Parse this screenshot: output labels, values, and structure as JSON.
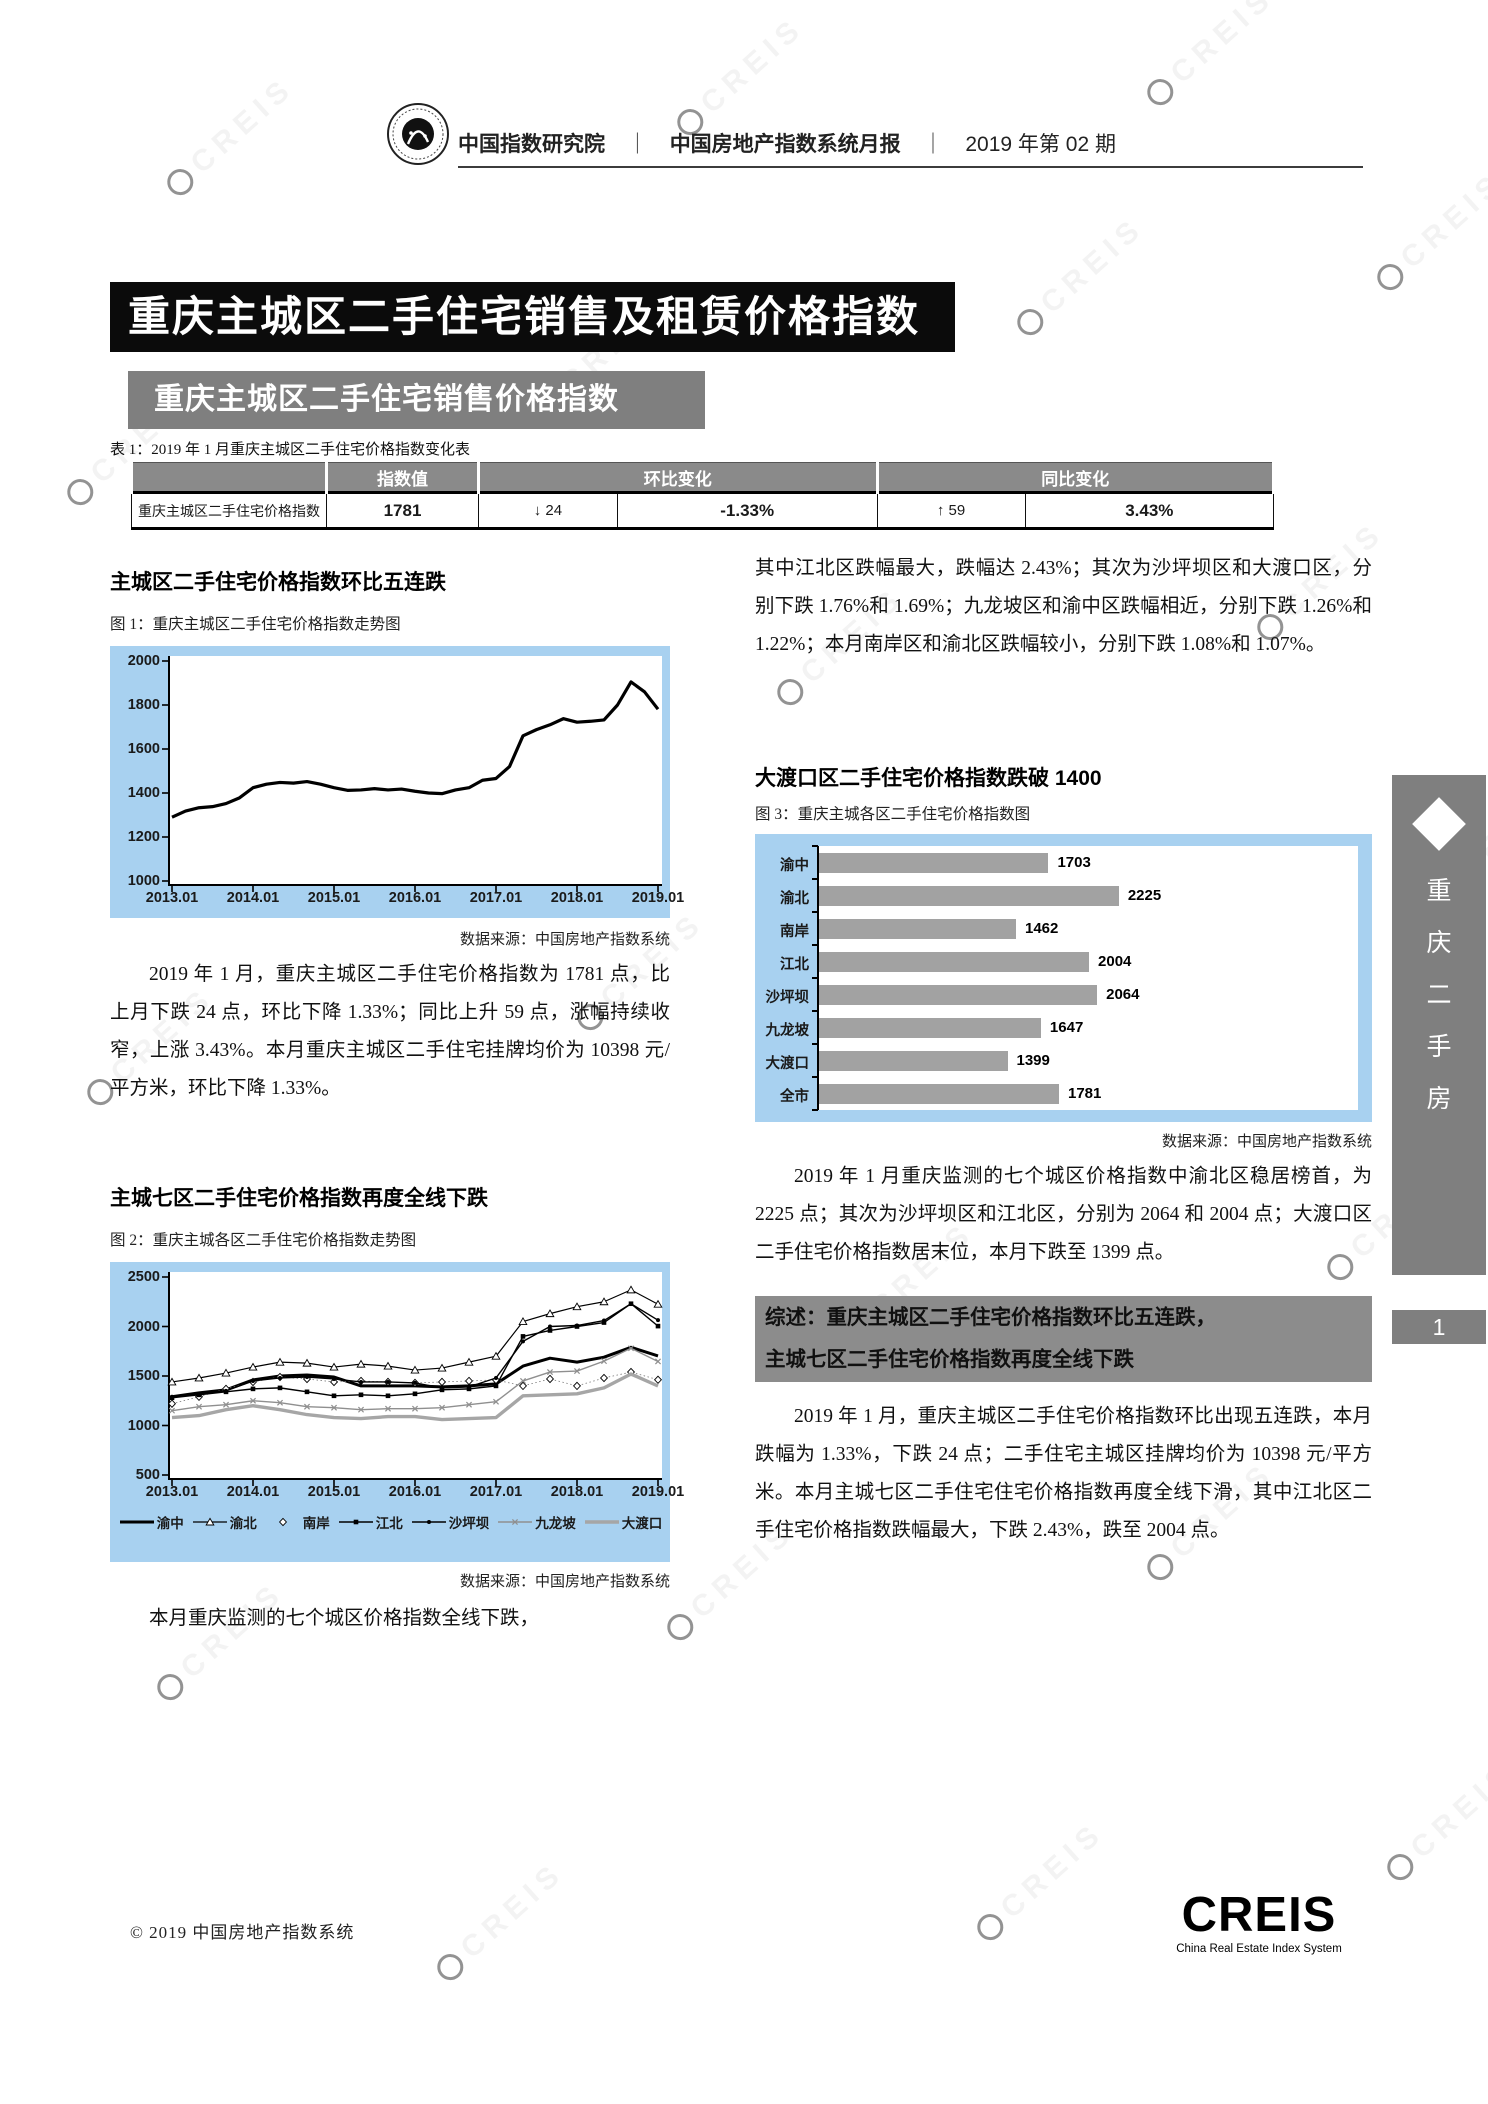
{
  "header": {
    "org": "中国指数研究院",
    "sep": "｜",
    "report": "中国房地产指数系统月报",
    "issue": "2019 年第 02 期"
  },
  "banner": "重庆主城区二手住宅销售及租赁价格指数",
  "section_banner": "重庆主城区二手住宅销售价格指数",
  "table": {
    "caption": "表 1：2019 年 1 月重庆主城区二手住宅价格指数变化表",
    "headers": {
      "index_value": "指数值",
      "mom": "环比变化",
      "yoy": "同比变化"
    },
    "row": {
      "label": "重庆主城区二手住宅价格指数",
      "index_value": "1781",
      "mom_delta": "↓ 24",
      "mom_pct": "-1.33%",
      "yoy_delta": "↑ 59",
      "yoy_pct": "3.43%"
    }
  },
  "left": {
    "heading1": "主城区二手住宅价格指数环比五连跌",
    "fig1_caption": "图 1：重庆主城区二手住宅价格指数走势图",
    "fig1_source": "数据来源：中国房地产指数系统",
    "para1": "2019 年 1 月，重庆主城区二手住宅价格指数为 1781 点，比上月下跌 24 点，环比下降 1.33%；同比上升 59 点，涨幅持续收窄，上涨 3.43%。本月重庆主城区二手住宅挂牌均价为 10398 元/平方米，环比下降 1.33%。",
    "heading2": "主城七区二手住宅价格指数再度全线下跌",
    "fig2_caption": "图 2：重庆主城各区二手住宅价格指数走势图",
    "fig2_source": "数据来源：中国房地产指数系统",
    "para2": "本月重庆监测的七个城区价格指数全线下跌，"
  },
  "right": {
    "para3": "其中江北区跌幅最大，跌幅达 2.43%；其次为沙坪坝区和大渡口区，分别下跌 1.76%和 1.69%；九龙坡区和渝中区跌幅相近，分别下跌 1.26%和 1.22%；本月南岸区和渝北区跌幅较小，分别下跌 1.08%和 1.07%。",
    "heading3": "大渡口区二手住宅价格指数跌破 1400",
    "fig3_caption": "图 3：重庆主城各区二手住宅价格指数图",
    "fig3_source": "数据来源：中国房地产指数系统",
    "para4": "2019 年 1 月重庆监测的七个城区价格指数中渝北区稳居榜首，为 2225 点；其次为沙坪坝区和江北区，分别为 2064 和 2004 点；大渡口区二手住宅价格指数居末位，本月下跌至 1399 点。",
    "summary_line1": "综述：重庆主城区二手住宅价格指数环比五连跌，",
    "summary_line2": "主城七区二手住宅价格指数再度全线下跌",
    "para5": "2019 年 1 月，重庆主城区二手住宅价格指数环比出现五连跌，本月跌幅为 1.33%，下跌 24 点；二手住宅主城区挂牌均价为 10398 元/平方米。本月主城七区二手住宅住宅价格指数再度全线下滑，其中江北区二手住宅价格指数跌幅最大，下跌 2.43%，跌至 2004 点。"
  },
  "sidebar": {
    "label_chars": [
      "重",
      "庆",
      "二",
      "手",
      "房"
    ],
    "page_number": "1"
  },
  "footer": {
    "copyright": "© 2019  中国房地产指数系统",
    "logo": "CREIS",
    "logo_sub": "China Real Estate Index System"
  },
  "watermark": {
    "text": "CREIS"
  },
  "chart_data": [
    {
      "type": "line",
      "title": "重庆主城区二手住宅价格指数走势图",
      "x_labels": [
        "2013.01",
        "2014.01",
        "2015.01",
        "2016.01",
        "2017.01",
        "2018.01",
        "2019.01"
      ],
      "months_total": 72,
      "ylim": [
        1000,
        2000
      ],
      "yticks": [
        1000,
        1200,
        1400,
        1600,
        1800,
        2000
      ],
      "series": [
        {
          "name": "重庆主城区",
          "marker": "none",
          "color": "#000000",
          "width": 3.2,
          "step": 2,
          "values": [
            1290,
            1318,
            1333,
            1338,
            1352,
            1378,
            1424,
            1440,
            1448,
            1445,
            1452,
            1440,
            1424,
            1412,
            1414,
            1420,
            1414,
            1418,
            1408,
            1400,
            1397,
            1414,
            1424,
            1458,
            1466,
            1520,
            1660,
            1688,
            1710,
            1738,
            1722,
            1726,
            1732,
            1800,
            1905,
            1860,
            1781
          ]
        }
      ]
    },
    {
      "type": "line",
      "title": "重庆主城各区二手住宅价格指数走势图",
      "x_labels": [
        "2013.01",
        "2014.01",
        "2015.01",
        "2016.01",
        "2017.01",
        "2018.01",
        "2019.01"
      ],
      "months_total": 72,
      "ylim": [
        500,
        2500
      ],
      "yticks": [
        500,
        1000,
        1500,
        2000,
        2500
      ],
      "series": [
        {
          "name": "渝中",
          "marker": "none",
          "color": "#000000",
          "width": 3,
          "step": 4,
          "values": [
            1290,
            1330,
            1360,
            1460,
            1500,
            1510,
            1490,
            1400,
            1400,
            1400,
            1390,
            1400,
            1420,
            1600,
            1680,
            1640,
            1690,
            1790,
            1703
          ]
        },
        {
          "name": "渝北",
          "marker": "triangle",
          "color": "#000000",
          "width": 1.2,
          "step": 4,
          "values": [
            1440,
            1480,
            1530,
            1590,
            1640,
            1630,
            1590,
            1620,
            1600,
            1560,
            1580,
            1640,
            1700,
            2050,
            2130,
            2200,
            2250,
            2370,
            2225
          ]
        },
        {
          "name": "南岸",
          "marker": "diamond",
          "color": "#000000",
          "width": 1,
          "step": 4,
          "values": [
            1220,
            1290,
            1370,
            1440,
            1490,
            1470,
            1440,
            1450,
            1440,
            1430,
            1440,
            1450,
            1460,
            1400,
            1470,
            1400,
            1480,
            1540,
            1462
          ]
        },
        {
          "name": "江北",
          "marker": "square",
          "color": "#000000",
          "width": 1.4,
          "step": 4,
          "values": [
            1280,
            1310,
            1340,
            1370,
            1380,
            1340,
            1300,
            1310,
            1300,
            1320,
            1360,
            1370,
            1400,
            1900,
            1960,
            2000,
            2040,
            2230,
            2004
          ]
        },
        {
          "name": "沙坪坝",
          "marker": "dot",
          "color": "#000000",
          "width": 1.4,
          "step": 4,
          "values": [
            1290,
            1320,
            1350,
            1450,
            1480,
            1490,
            1470,
            1440,
            1440,
            1430,
            1380,
            1390,
            1480,
            1850,
            2000,
            2010,
            2060,
            2230,
            2064
          ]
        },
        {
          "name": "九龙坡",
          "marker": "x",
          "color": "#8f8f8f",
          "width": 1.4,
          "step": 4,
          "values": [
            1150,
            1190,
            1210,
            1250,
            1230,
            1190,
            1180,
            1160,
            1170,
            1170,
            1180,
            1210,
            1240,
            1450,
            1540,
            1550,
            1650,
            1780,
            1647
          ]
        },
        {
          "name": "大渡口",
          "marker": "none",
          "color": "#a6a6a6",
          "width": 3.4,
          "step": 4,
          "values": [
            1080,
            1100,
            1160,
            1200,
            1160,
            1110,
            1080,
            1070,
            1090,
            1090,
            1060,
            1070,
            1080,
            1300,
            1310,
            1320,
            1380,
            1520,
            1399
          ]
        }
      ]
    },
    {
      "type": "bar",
      "title": "重庆主城各区二手住宅价格指数图",
      "categories": [
        "渝中",
        "渝北",
        "南岸",
        "江北",
        "沙坪坝",
        "九龙坡",
        "大渡口",
        "全市"
      ],
      "values": [
        1703,
        2225,
        1462,
        2004,
        2064,
        1647,
        1399,
        1781
      ],
      "xlim": [
        0,
        4000
      ],
      "bar_color": "#a2a2a2"
    }
  ]
}
